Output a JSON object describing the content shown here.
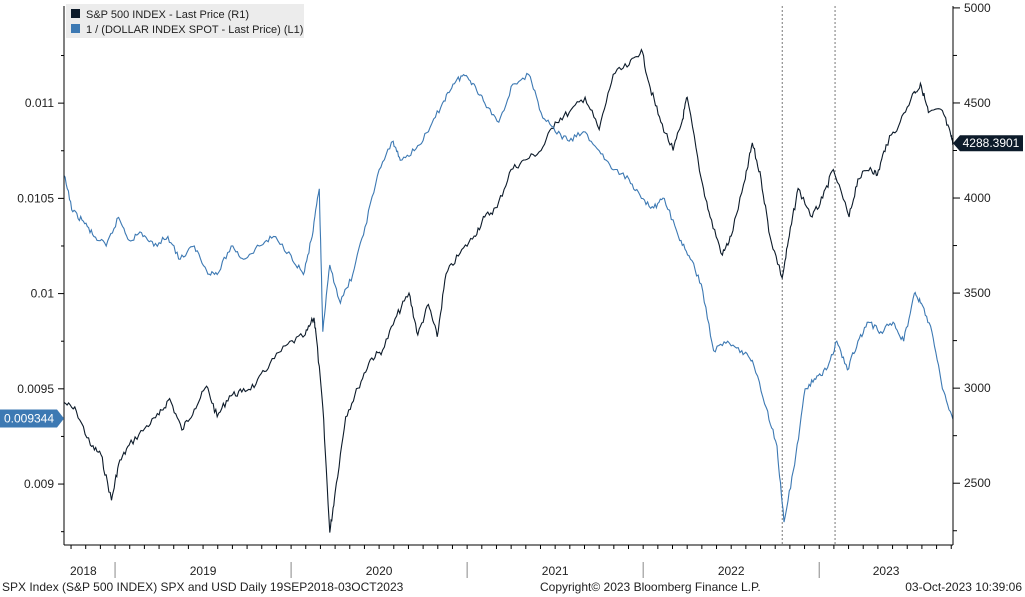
{
  "chart_data": {
    "type": "line",
    "title": "SPX Index (S&P 500 INDEX) SPX and USD",
    "frequency": "Daily",
    "date_range": "19SEP2018-03OCT2023",
    "x_categories": [
      "2018",
      "2019",
      "2020",
      "2021",
      "2022",
      "2023"
    ],
    "x_domain": [
      2018.71,
      2023.76
    ],
    "left_axis": {
      "label": "L1",
      "range": [
        0.00868,
        0.01151
      ],
      "ticks": [
        "0.009",
        "0.0095",
        "0.01",
        "0.0105",
        "0.011"
      ]
    },
    "right_axis": {
      "label": "R1",
      "range": [
        2175,
        5010
      ],
      "ticks": [
        "2500",
        "3000",
        "3500",
        "4000",
        "4500",
        "5000"
      ]
    },
    "reference_lines_x": [
      2022.79,
      2023.09
    ],
    "series": [
      {
        "name": "S&P 500 INDEX - Last Price (R1)",
        "axis": "right",
        "color": "#0d1b2a",
        "last_value": "4288.3901",
        "points": [
          [
            2018.71,
            2925
          ],
          [
            2018.78,
            2880
          ],
          [
            2018.86,
            2700
          ],
          [
            2018.92,
            2650
          ],
          [
            2018.98,
            2410
          ],
          [
            2019.02,
            2600
          ],
          [
            2019.08,
            2700
          ],
          [
            2019.17,
            2790
          ],
          [
            2019.25,
            2860
          ],
          [
            2019.31,
            2945
          ],
          [
            2019.38,
            2780
          ],
          [
            2019.45,
            2890
          ],
          [
            2019.52,
            3010
          ],
          [
            2019.58,
            2850
          ],
          [
            2019.65,
            2960
          ],
          [
            2019.72,
            2980
          ],
          [
            2019.8,
            3020
          ],
          [
            2019.88,
            3130
          ],
          [
            2019.98,
            3230
          ],
          [
            2020.08,
            3280
          ],
          [
            2020.13,
            3370
          ],
          [
            2020.14,
            3300
          ],
          [
            2020.18,
            2900
          ],
          [
            2020.22,
            2240
          ],
          [
            2020.25,
            2450
          ],
          [
            2020.31,
            2850
          ],
          [
            2020.38,
            3000
          ],
          [
            2020.45,
            3150
          ],
          [
            2020.52,
            3200
          ],
          [
            2020.6,
            3380
          ],
          [
            2020.67,
            3500
          ],
          [
            2020.72,
            3280
          ],
          [
            2020.78,
            3440
          ],
          [
            2020.83,
            3270
          ],
          [
            2020.88,
            3600
          ],
          [
            2020.96,
            3710
          ],
          [
            2021.04,
            3800
          ],
          [
            2021.1,
            3900
          ],
          [
            2021.17,
            3950
          ],
          [
            2021.25,
            4150
          ],
          [
            2021.33,
            4200
          ],
          [
            2021.42,
            4250
          ],
          [
            2021.5,
            4400
          ],
          [
            2021.58,
            4450
          ],
          [
            2021.67,
            4530
          ],
          [
            2021.75,
            4360
          ],
          [
            2021.83,
            4650
          ],
          [
            2021.92,
            4700
          ],
          [
            2021.99,
            4780
          ],
          [
            2022.04,
            4580
          ],
          [
            2022.1,
            4400
          ],
          [
            2022.17,
            4250
          ],
          [
            2022.22,
            4400
          ],
          [
            2022.25,
            4530
          ],
          [
            2022.33,
            4100
          ],
          [
            2022.38,
            3900
          ],
          [
            2022.45,
            3700
          ],
          [
            2022.5,
            3800
          ],
          [
            2022.58,
            4100
          ],
          [
            2022.62,
            4290
          ],
          [
            2022.67,
            4100
          ],
          [
            2022.72,
            3800
          ],
          [
            2022.79,
            3580
          ],
          [
            2022.83,
            3800
          ],
          [
            2022.88,
            4050
          ],
          [
            2022.96,
            3900
          ],
          [
            2023.02,
            4000
          ],
          [
            2023.08,
            4150
          ],
          [
            2023.17,
            3900
          ],
          [
            2023.22,
            4100
          ],
          [
            2023.29,
            4160
          ],
          [
            2023.33,
            4120
          ],
          [
            2023.38,
            4280
          ],
          [
            2023.46,
            4400
          ],
          [
            2023.54,
            4560
          ],
          [
            2023.58,
            4590
          ],
          [
            2023.62,
            4450
          ],
          [
            2023.7,
            4460
          ],
          [
            2023.75,
            4320
          ],
          [
            2023.76,
            4288
          ]
        ]
      },
      {
        "name": "1 / (DOLLAR INDEX SPOT - Last Price) (L1)",
        "axis": "left",
        "color": "#3d79b3",
        "last_value": "0.009344",
        "points": [
          [
            2018.71,
            0.01062
          ],
          [
            2018.76,
            0.01043
          ],
          [
            2018.82,
            0.01038
          ],
          [
            2018.88,
            0.0103
          ],
          [
            2018.95,
            0.01025
          ],
          [
            2019.02,
            0.0104
          ],
          [
            2019.08,
            0.01028
          ],
          [
            2019.15,
            0.01032
          ],
          [
            2019.22,
            0.01025
          ],
          [
            2019.3,
            0.0103
          ],
          [
            2019.37,
            0.01018
          ],
          [
            2019.45,
            0.01025
          ],
          [
            2019.52,
            0.01012
          ],
          [
            2019.58,
            0.0101
          ],
          [
            2019.66,
            0.01025
          ],
          [
            2019.73,
            0.01018
          ],
          [
            2019.82,
            0.01025
          ],
          [
            2019.9,
            0.0103
          ],
          [
            2020.0,
            0.0102
          ],
          [
            2020.07,
            0.0101
          ],
          [
            2020.12,
            0.0103
          ],
          [
            2020.16,
            0.01055
          ],
          [
            2020.18,
            0.0098
          ],
          [
            2020.22,
            0.01015
          ],
          [
            2020.28,
            0.00995
          ],
          [
            2020.35,
            0.0101
          ],
          [
            2020.42,
            0.01035
          ],
          [
            2020.5,
            0.01065
          ],
          [
            2020.58,
            0.0108
          ],
          [
            2020.62,
            0.0107
          ],
          [
            2020.7,
            0.01075
          ],
          [
            2020.78,
            0.01085
          ],
          [
            2020.86,
            0.011
          ],
          [
            2020.92,
            0.0111
          ],
          [
            2020.98,
            0.01115
          ],
          [
            2021.04,
            0.0111
          ],
          [
            2021.1,
            0.011
          ],
          [
            2021.18,
            0.0109
          ],
          [
            2021.26,
            0.0111
          ],
          [
            2021.35,
            0.01115
          ],
          [
            2021.42,
            0.01095
          ],
          [
            2021.5,
            0.01085
          ],
          [
            2021.58,
            0.0108
          ],
          [
            2021.66,
            0.01085
          ],
          [
            2021.75,
            0.01075
          ],
          [
            2021.83,
            0.01065
          ],
          [
            2021.92,
            0.0106
          ],
          [
            2021.99,
            0.0105
          ],
          [
            2022.06,
            0.01045
          ],
          [
            2022.12,
            0.0105
          ],
          [
            2022.2,
            0.0103
          ],
          [
            2022.26,
            0.0102
          ],
          [
            2022.33,
            0.01005
          ],
          [
            2022.4,
            0.0097
          ],
          [
            2022.48,
            0.00975
          ],
          [
            2022.56,
            0.0097
          ],
          [
            2022.62,
            0.00965
          ],
          [
            2022.7,
            0.0094
          ],
          [
            2022.76,
            0.0092
          ],
          [
            2022.8,
            0.0088
          ],
          [
            2022.86,
            0.0091
          ],
          [
            2022.92,
            0.0095
          ],
          [
            2022.98,
            0.00955
          ],
          [
            2023.04,
            0.0096
          ],
          [
            2023.1,
            0.00975
          ],
          [
            2023.16,
            0.0096
          ],
          [
            2023.22,
            0.00975
          ],
          [
            2023.28,
            0.00985
          ],
          [
            2023.35,
            0.0098
          ],
          [
            2023.42,
            0.00985
          ],
          [
            2023.48,
            0.00975
          ],
          [
            2023.54,
            0.01
          ],
          [
            2023.58,
            0.00995
          ],
          [
            2023.64,
            0.0098
          ],
          [
            2023.7,
            0.0095
          ],
          [
            2023.76,
            0.00934
          ]
        ]
      }
    ]
  },
  "footer": {
    "left": "SPX Index (S&P 500 INDEX) SPX and USD  Daily 19SEP2018-03OCT2023",
    "center": "Copyright© 2023 Bloomberg Finance L.P.",
    "right": "03-Oct-2023 10:39:06"
  }
}
